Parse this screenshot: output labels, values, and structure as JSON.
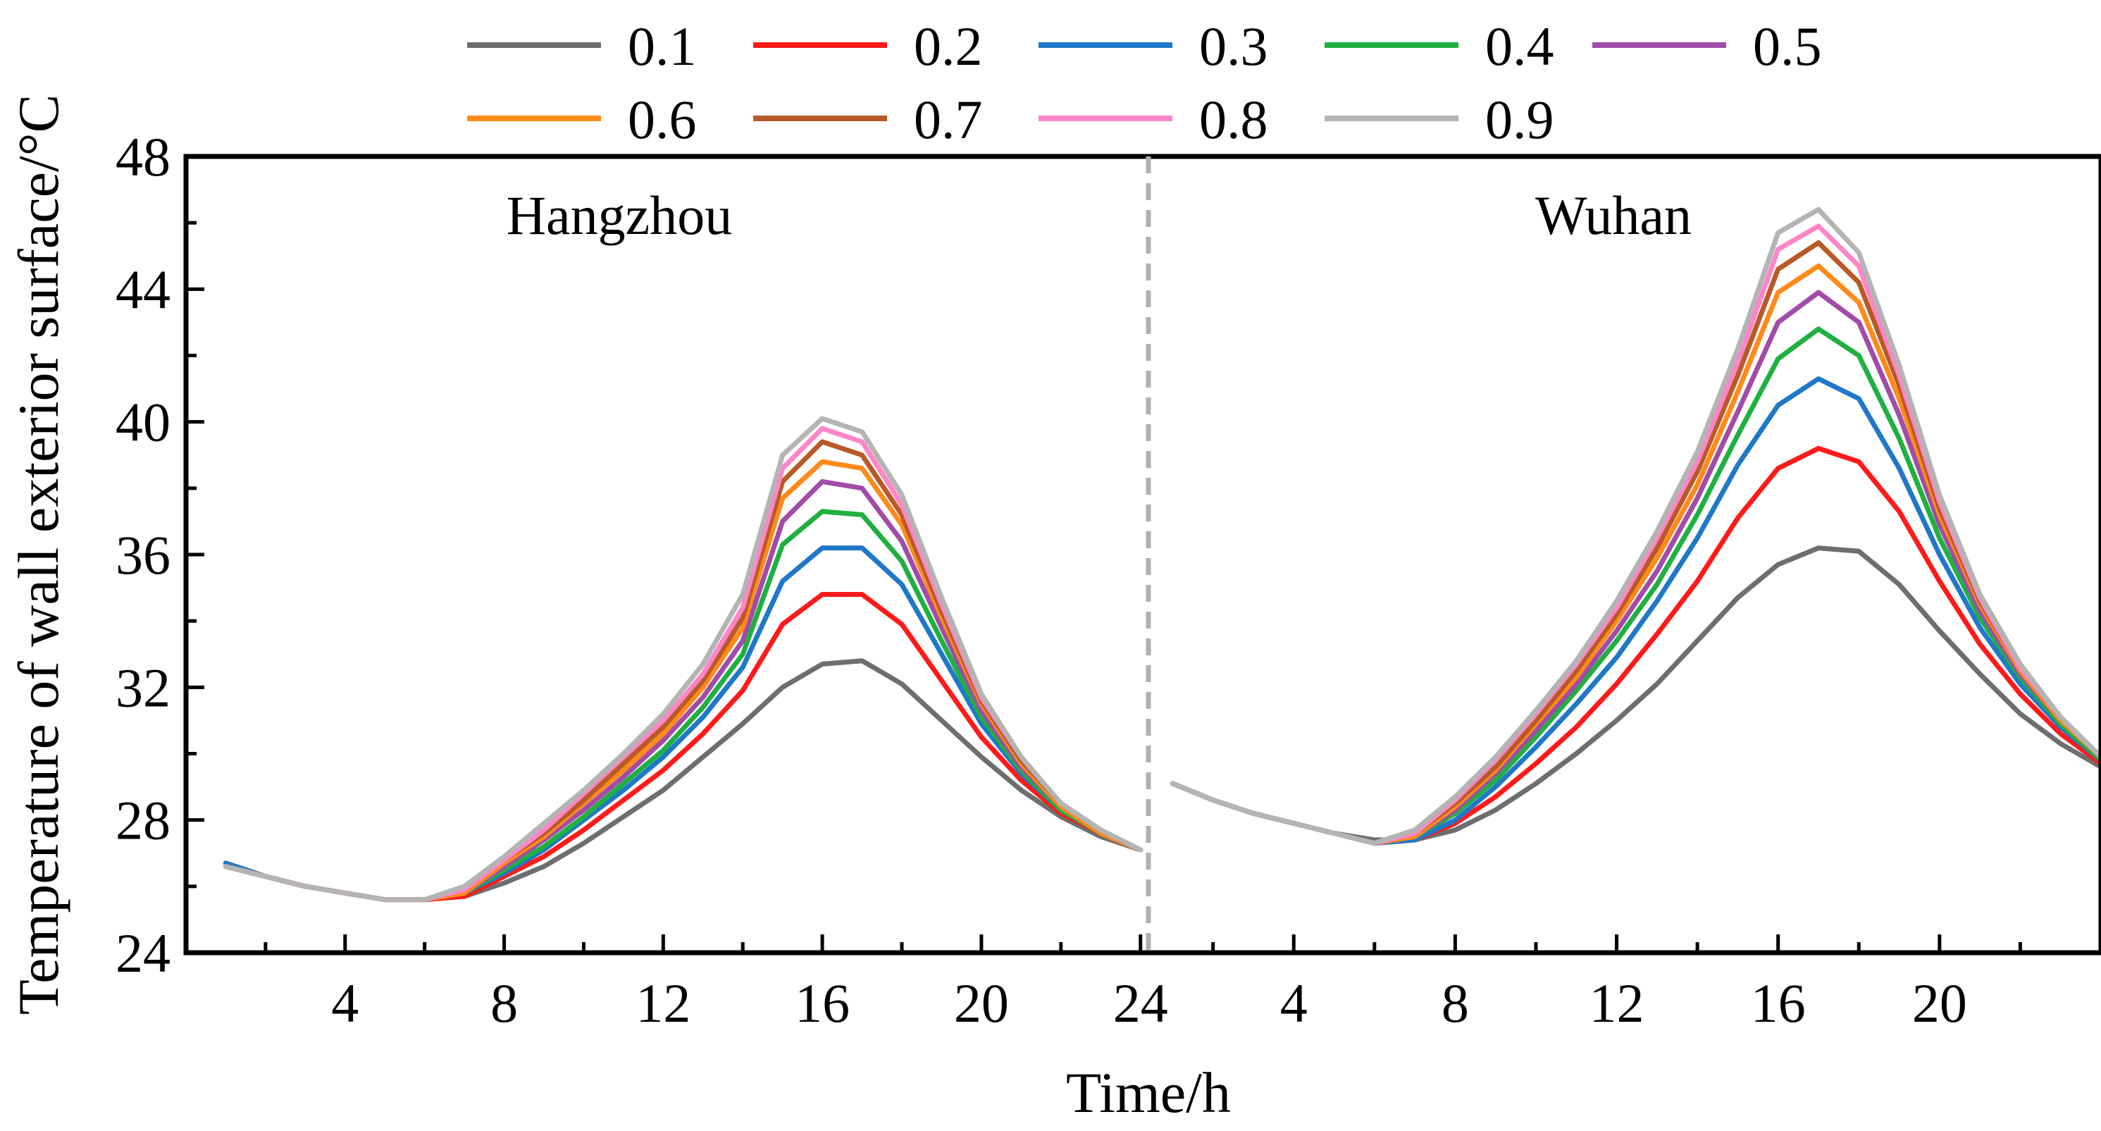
{
  "chart_data": {
    "type": "line",
    "x_axis_title": "Time/h",
    "y_axis_title": "Temperature of wall exterior surface/°C",
    "y_range": [
      24,
      48
    ],
    "y_ticks": [
      "24",
      "28",
      "32",
      "36",
      "40",
      "44",
      "48"
    ],
    "x_range": [
      1,
      24
    ],
    "divider_style": "dashed gray vertical line between panels",
    "legend_placement": "top, above plot, two rows",
    "panels": [
      {
        "name": "Hangzhou",
        "x_range": [
          0,
          24.2
        ],
        "x_ticks": [
          "4",
          "8",
          "12",
          "16",
          "20",
          "24"
        ],
        "x": [
          1,
          2,
          3,
          4,
          5,
          6,
          7,
          8,
          9,
          10,
          11,
          12,
          13,
          14,
          15,
          16,
          17,
          18,
          19,
          20,
          21,
          22,
          23,
          24
        ],
        "series": [
          {
            "name": "0.1",
            "color": "#6e6e6e",
            "values": [
              26.7,
              26.3,
              26.0,
              25.8,
              25.6,
              25.6,
              25.7,
              26.1,
              26.6,
              27.3,
              28.1,
              28.9,
              29.9,
              30.9,
              32.0,
              32.7,
              32.8,
              32.1,
              31.0,
              29.9,
              28.9,
              28.1,
              27.5,
              27.1
            ]
          },
          {
            "name": "0.2",
            "color": "#ff1a1a",
            "values": [
              26.7,
              26.3,
              26.0,
              25.8,
              25.6,
              25.6,
              25.7,
              26.3,
              26.9,
              27.7,
              28.6,
              29.5,
              30.6,
              31.9,
              33.9,
              34.8,
              34.8,
              33.9,
              32.2,
              30.5,
              29.2,
              28.2,
              27.6,
              27.1
            ]
          },
          {
            "name": "0.3",
            "color": "#1f78c8",
            "values": [
              26.7,
              26.3,
              26.0,
              25.8,
              25.6,
              25.6,
              25.8,
              26.4,
              27.1,
              28.0,
              28.9,
              29.9,
              31.1,
              32.6,
              35.2,
              36.2,
              36.2,
              35.1,
              33.0,
              30.9,
              29.4,
              28.3,
              27.6,
              27.1
            ]
          },
          {
            "name": "0.4",
            "color": "#1fb040",
            "values": [
              26.6,
              26.3,
              26.0,
              25.8,
              25.6,
              25.6,
              25.8,
              26.5,
              27.2,
              28.1,
              29.1,
              30.1,
              31.4,
              33.0,
              36.3,
              37.3,
              37.2,
              35.8,
              33.4,
              31.1,
              29.5,
              28.3,
              27.6,
              27.1
            ]
          },
          {
            "name": "0.5",
            "color": "#a04ca8",
            "values": [
              26.6,
              26.3,
              26.0,
              25.8,
              25.6,
              25.6,
              25.8,
              26.6,
              27.4,
              28.3,
              29.3,
              30.4,
              31.7,
              33.4,
              37.0,
              38.2,
              38.0,
              36.4,
              33.8,
              31.3,
              29.6,
              28.4,
              27.6,
              27.1
            ]
          },
          {
            "name": "0.6",
            "color": "#ff8a1a",
            "values": [
              26.6,
              26.3,
              26.0,
              25.8,
              25.6,
              25.6,
              25.8,
              26.7,
              27.5,
              28.5,
              29.5,
              30.6,
              32.0,
              33.8,
              37.7,
              38.8,
              38.6,
              36.9,
              34.1,
              31.5,
              29.7,
              28.4,
              27.6,
              27.1
            ]
          },
          {
            "name": "0.7",
            "color": "#b85a28",
            "values": [
              26.6,
              26.3,
              26.0,
              25.8,
              25.6,
              25.6,
              25.9,
              26.8,
              27.6,
              28.6,
              29.7,
              30.8,
              32.2,
              34.1,
              38.2,
              39.4,
              39.0,
              37.2,
              34.3,
              31.6,
              29.8,
              28.5,
              27.7,
              27.1
            ]
          },
          {
            "name": "0.8",
            "color": "#ff85c8",
            "values": [
              26.6,
              26.3,
              26.0,
              25.8,
              25.6,
              25.6,
              25.9,
              26.8,
              27.7,
              28.8,
              29.9,
              31.0,
              32.4,
              34.4,
              38.6,
              39.8,
              39.4,
              37.5,
              34.5,
              31.7,
              29.9,
              28.5,
              27.7,
              27.1
            ]
          },
          {
            "name": "0.9",
            "color": "#b4b4b4",
            "values": [
              26.6,
              26.3,
              26.0,
              25.8,
              25.6,
              25.6,
              26.0,
              26.9,
              27.9,
              28.9,
              30.0,
              31.2,
              32.7,
              34.8,
              39.0,
              40.1,
              39.7,
              37.8,
              34.7,
              31.8,
              29.9,
              28.5,
              27.7,
              27.1
            ]
          }
        ]
      },
      {
        "name": "Wuhan",
        "x_range": [
          0.4,
          24
        ],
        "x_ticks": [
          "4",
          "8",
          "12",
          "16",
          "20"
        ],
        "x": [
          1,
          2,
          3,
          4,
          5,
          6,
          7,
          8,
          9,
          10,
          11,
          12,
          13,
          14,
          15,
          16,
          17,
          18,
          19,
          20,
          21,
          22,
          23,
          24
        ],
        "series": [
          {
            "name": "0.1",
            "color": "#6e6e6e",
            "values": [
              29.1,
              28.6,
              28.2,
              27.9,
              27.6,
              27.4,
              27.4,
              27.7,
              28.3,
              29.1,
              30.0,
              31.0,
              32.1,
              33.4,
              34.7,
              35.7,
              36.2,
              36.1,
              35.1,
              33.7,
              32.4,
              31.2,
              30.3,
              29.6
            ]
          },
          {
            "name": "0.2",
            "color": "#ff1a1a",
            "values": [
              29.1,
              28.6,
              28.2,
              27.9,
              27.6,
              27.3,
              27.4,
              27.9,
              28.7,
              29.7,
              30.8,
              32.1,
              33.6,
              35.2,
              37.1,
              38.6,
              39.2,
              38.8,
              37.3,
              35.2,
              33.3,
              31.8,
              30.6,
              29.7
            ]
          },
          {
            "name": "0.3",
            "color": "#1f78c8",
            "values": [
              29.1,
              28.6,
              28.2,
              27.9,
              27.6,
              27.3,
              27.4,
              28.0,
              29.0,
              30.2,
              31.5,
              32.9,
              34.6,
              36.5,
              38.7,
              40.5,
              41.3,
              40.7,
              38.6,
              36.0,
              33.8,
              32.1,
              30.8,
              29.8
            ]
          },
          {
            "name": "0.4",
            "color": "#1fb040",
            "values": [
              29.1,
              28.6,
              28.2,
              27.9,
              27.6,
              27.3,
              27.5,
              28.2,
              29.2,
              30.5,
              31.9,
              33.4,
              35.1,
              37.2,
              39.6,
              41.9,
              42.8,
              42.0,
              39.5,
              36.5,
              34.1,
              32.3,
              30.9,
              29.8
            ]
          },
          {
            "name": "0.5",
            "color": "#a04ca8",
            "values": [
              29.1,
              28.6,
              28.2,
              27.9,
              27.6,
              27.3,
              27.5,
              28.3,
              29.4,
              30.7,
              32.1,
              33.7,
              35.5,
              37.7,
              40.3,
              43.0,
              43.9,
              43.0,
              40.2,
              36.9,
              34.3,
              32.4,
              31.0,
              29.9
            ]
          },
          {
            "name": "0.6",
            "color": "#ff8a1a",
            "values": [
              29.1,
              28.6,
              28.2,
              27.9,
              27.6,
              27.3,
              27.5,
              28.4,
              29.5,
              30.9,
              32.3,
              34.0,
              35.9,
              38.1,
              40.9,
              43.9,
              44.7,
              43.6,
              40.7,
              37.2,
              34.5,
              32.5,
              31.0,
              29.9
            ]
          },
          {
            "name": "0.7",
            "color": "#b85a28",
            "values": [
              29.1,
              28.6,
              28.2,
              27.9,
              27.6,
              27.3,
              27.6,
              28.5,
              29.6,
              31.0,
              32.5,
              34.2,
              36.2,
              38.5,
              41.4,
              44.6,
              45.4,
              44.2,
              41.1,
              37.4,
              34.6,
              32.6,
              31.1,
              29.9
            ]
          },
          {
            "name": "0.8",
            "color": "#ff85c8",
            "values": [
              29.1,
              28.6,
              28.2,
              27.9,
              27.6,
              27.3,
              27.6,
              28.6,
              29.8,
              31.2,
              32.7,
              34.4,
              36.5,
              38.8,
              41.8,
              45.2,
              45.9,
              44.7,
              41.4,
              37.6,
              34.7,
              32.6,
              31.1,
              29.9
            ]
          },
          {
            "name": "0.9",
            "color": "#b4b4b4",
            "values": [
              29.1,
              28.6,
              28.2,
              27.9,
              27.6,
              27.3,
              27.7,
              28.7,
              29.9,
              31.3,
              32.8,
              34.6,
              36.7,
              39.1,
              42.2,
              45.7,
              46.4,
              45.1,
              41.7,
              37.8,
              34.8,
              32.7,
              31.1,
              29.9
            ]
          }
        ]
      }
    ]
  }
}
